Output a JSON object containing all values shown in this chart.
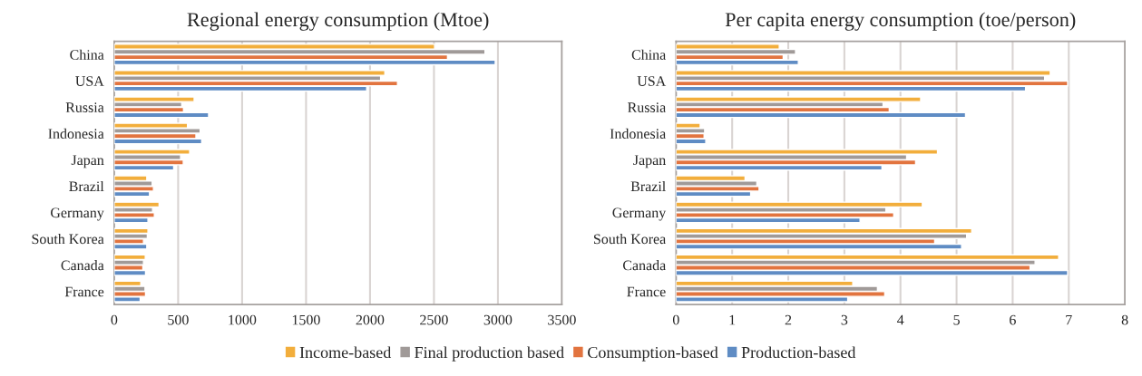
{
  "chart_data": [
    {
      "type": "bar",
      "orientation": "horizontal",
      "title": "Regional energy consumption (Mtoe)",
      "categories": [
        "China",
        "USA",
        "Russia",
        "Indonesia",
        "Japan",
        "Brazil",
        "Germany",
        "South Korea",
        "Canada",
        "France"
      ],
      "series": [
        {
          "name": "Income-based",
          "color": "#f2ae3c",
          "values": [
            2505,
            2116,
            625,
            573,
            590,
            255,
            351,
            264,
            243,
            208
          ]
        },
        {
          "name": "Final production based",
          "color": "#a09a98",
          "values": [
            2899,
            2083,
            528,
            672,
            519,
            297,
            300,
            259,
            229,
            241
          ]
        },
        {
          "name": "Consumption-based",
          "color": "#e2743f",
          "values": [
            2606,
            2215,
            542,
            639,
            540,
            307,
            314,
            229,
            224,
            245
          ]
        },
        {
          "name": "Production-based",
          "color": "#5f8cc4",
          "values": [
            2979,
            1974,
            738,
            684,
            465,
            276,
            264,
            255,
            245,
            203
          ]
        }
      ],
      "xlim": [
        0,
        3500
      ],
      "xticks": [
        0,
        500,
        1000,
        1500,
        2000,
        2500,
        3000,
        3500
      ],
      "grid": "x",
      "legend": "bottom"
    },
    {
      "type": "bar",
      "orientation": "horizontal",
      "title": "Per capita energy consumption (toe/person)",
      "categories": [
        "China",
        "USA",
        "Russia",
        "Indonesia",
        "Japan",
        "Brazil",
        "Germany",
        "South Korea",
        "Canada",
        "France"
      ],
      "series": [
        {
          "color": "#f2ae3c",
          "values": [
            1.84,
            6.67,
            4.36,
            0.43,
            4.66,
            1.23,
            4.39,
            5.27,
            6.82,
            3.15
          ]
        },
        {
          "color": "#a09a98",
          "values": [
            2.13,
            6.57,
            3.69,
            0.51,
            4.11,
            1.44,
            3.74,
            5.18,
            6.4,
            3.59
          ]
        },
        {
          "color": "#e2743f",
          "values": [
            1.91,
            6.98,
            3.8,
            0.5,
            4.27,
            1.48,
            3.88,
            4.61,
            6.31,
            3.72
          ]
        },
        {
          "color": "#5f8cc4",
          "values": [
            2.18,
            6.23,
            5.16,
            0.53,
            3.67,
            1.33,
            3.28,
            5.09,
            6.98,
            3.06
          ]
        }
      ],
      "xlim": [
        0,
        8
      ],
      "xticks": [
        0,
        1,
        2,
        3,
        4,
        5,
        6,
        7,
        8
      ],
      "grid": "x"
    }
  ]
}
